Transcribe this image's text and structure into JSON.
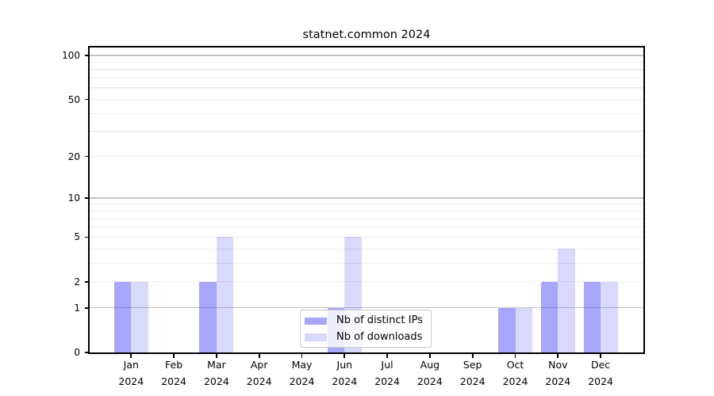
{
  "chart_data": {
    "type": "bar",
    "title": "statnet.common 2024",
    "x_ticks": [
      {
        "month": "Jan",
        "year": "2024"
      },
      {
        "month": "Feb",
        "year": "2024"
      },
      {
        "month": "Mar",
        "year": "2024"
      },
      {
        "month": "Apr",
        "year": "2024"
      },
      {
        "month": "May",
        "year": "2024"
      },
      {
        "month": "Jun",
        "year": "2024"
      },
      {
        "month": "Jul",
        "year": "2024"
      },
      {
        "month": "Aug",
        "year": "2024"
      },
      {
        "month": "Sep",
        "year": "2024"
      },
      {
        "month": "Oct",
        "year": "2024"
      },
      {
        "month": "Nov",
        "year": "2024"
      },
      {
        "month": "Dec",
        "year": "2024"
      }
    ],
    "series": [
      {
        "name": "Nb of distinct IPs",
        "color": "rgba(0,0,240,0.35)",
        "values": [
          2,
          0,
          2,
          0,
          0,
          1,
          0,
          0,
          0,
          1,
          2,
          2
        ]
      },
      {
        "name": "Nb of downloads",
        "color": "rgba(0,0,240,0.15)",
        "values": [
          2,
          0,
          5,
          0,
          0,
          5,
          0,
          0,
          0,
          1,
          4,
          2
        ]
      }
    ],
    "y_axis": {
      "scale": "log10(1+y)",
      "tick_labels": [
        0,
        1,
        2,
        5,
        10,
        20,
        50,
        100
      ],
      "decade_gridlines": [
        1,
        10,
        100
      ],
      "minor_gridlines": [
        2,
        3,
        4,
        5,
        6,
        7,
        8,
        9,
        20,
        30,
        40,
        50,
        60,
        70,
        80,
        90
      ],
      "ylim": [
        0,
        113
      ]
    },
    "legend": {
      "position": "lower center"
    },
    "grid": "horizontal"
  }
}
